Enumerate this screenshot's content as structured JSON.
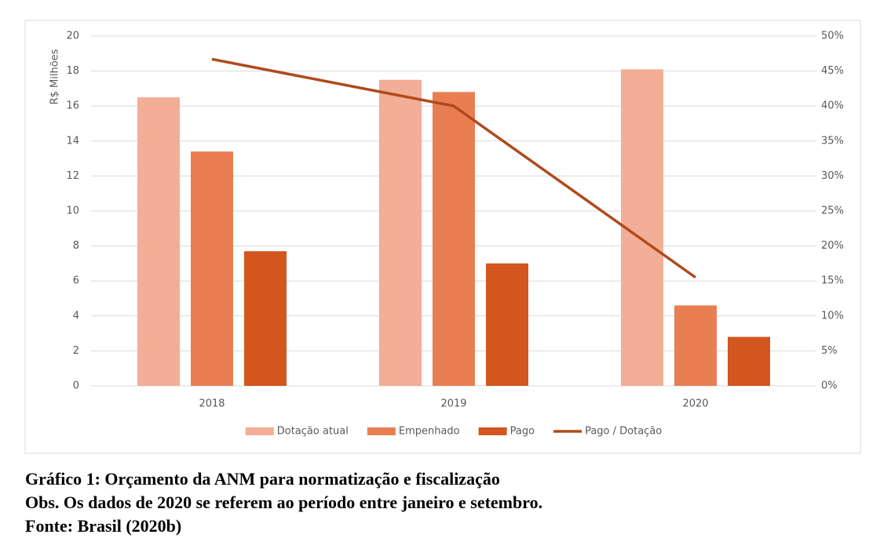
{
  "chart_data": {
    "type": "bar",
    "categories": [
      "2018",
      "2019",
      "2020"
    ],
    "y_label": "R$ Milhões",
    "ylim": [
      0,
      20
    ],
    "yticks": [
      0,
      2,
      4,
      6,
      8,
      10,
      12,
      14,
      16,
      18,
      20
    ],
    "y2lim": [
      0,
      50
    ],
    "y2ticks": [
      {
        "value": 0,
        "label": "0%"
      },
      {
        "value": 5,
        "label": "5%"
      },
      {
        "value": 10,
        "label": "10%"
      },
      {
        "value": 15,
        "label": "15%"
      },
      {
        "value": 20,
        "label": "20%"
      },
      {
        "value": 25,
        "label": "25%"
      },
      {
        "value": 30,
        "label": "30%"
      },
      {
        "value": 35,
        "label": "35%"
      },
      {
        "value": 40,
        "label": "40%"
      },
      {
        "value": 45,
        "label": "45%"
      },
      {
        "value": 50,
        "label": "50%"
      }
    ],
    "grid": true,
    "legend": "bottom",
    "series": [
      {
        "name": "Dotação atual",
        "color": "#f2ae96",
        "values": [
          16.5,
          17.5,
          18.1
        ]
      },
      {
        "name": "Empenhado",
        "color": "#e87e52",
        "values": [
          13.4,
          16.8,
          4.6
        ]
      },
      {
        "name": "Pago",
        "color": "#d2561e",
        "values": [
          7.7,
          7.0,
          2.8
        ]
      },
      {
        "name": "Pago / Dotação",
        "color": "#b04a1c",
        "type": "line",
        "axis": "y2",
        "values": [
          46.7,
          40.0,
          15.5
        ]
      }
    ]
  },
  "caption": [
    "Gráfico 1: Orçamento da ANM para normatização e fiscalização",
    "Obs. Os dados de 2020 se referem ao período entre janeiro e setembro.",
    "Fonte: Brasil (2020b)"
  ]
}
